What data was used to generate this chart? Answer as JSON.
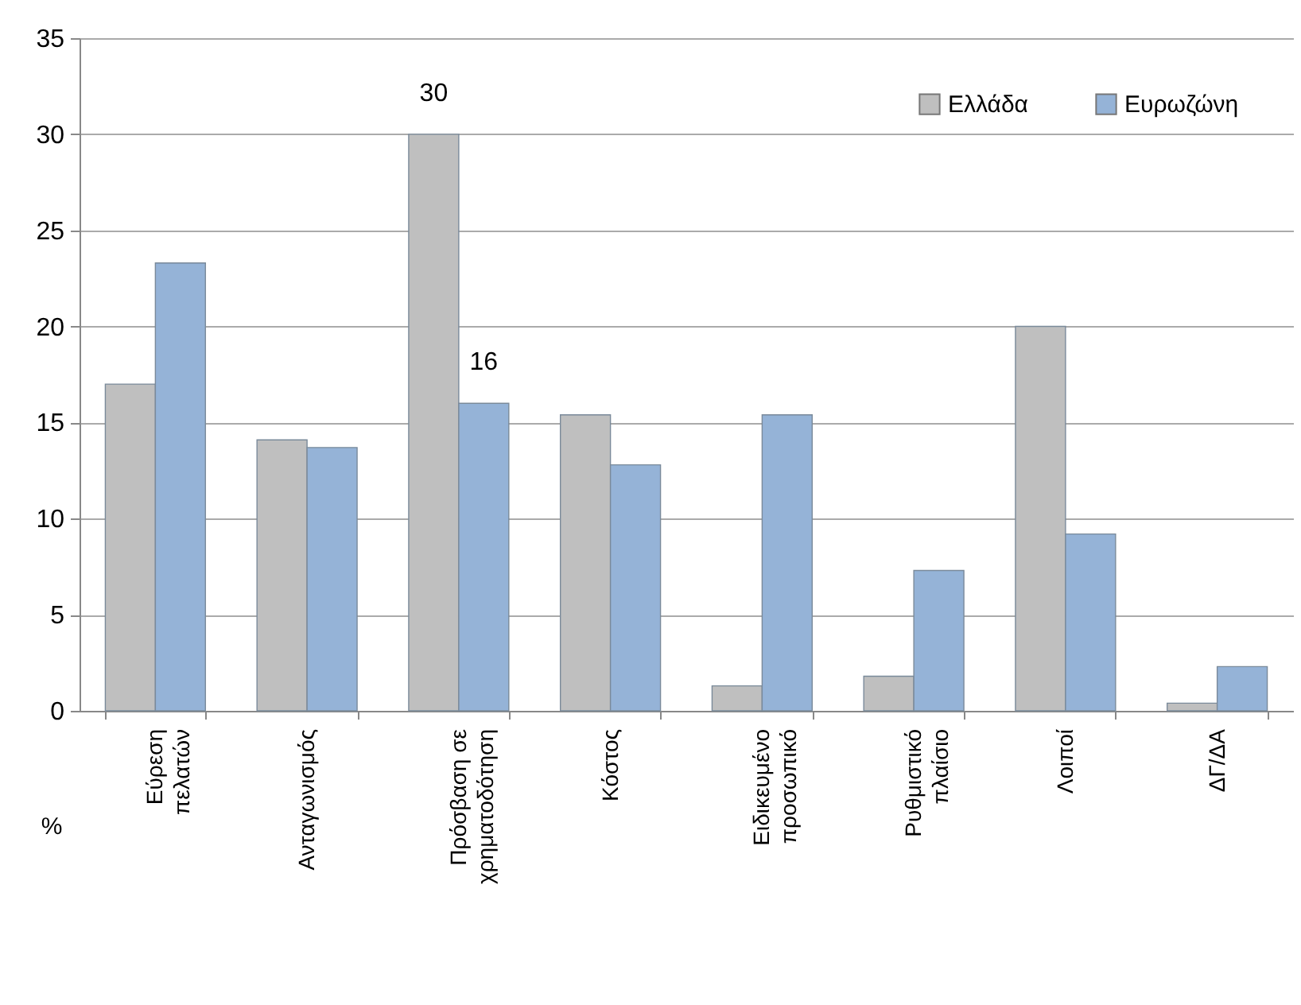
{
  "chart_data": {
    "type": "bar",
    "ylabel": "%",
    "categories": [
      "Εύρεση πελατών",
      "Ανταγωνισμός",
      "Πρόσβαση σε χρηματοδότηση",
      "Κόστος",
      "Ειδικευμένο προσωπικό",
      "Ρυθμιστικό πλαίσιο",
      "Λοιποί",
      "ΔΓ/ΔΑ"
    ],
    "series": [
      {
        "name": "Ελλάδα",
        "color": "#bfbfbf",
        "values": [
          17,
          14.1,
          30,
          15.4,
          1.3,
          1.8,
          20,
          0.4
        ],
        "value_labels": [
          null,
          null,
          "30",
          null,
          null,
          null,
          null,
          null
        ]
      },
      {
        "name": "Ευρωζώνη",
        "color": "#95b3d7",
        "values": [
          23.3,
          13.7,
          16,
          12.8,
          15.4,
          7.3,
          9.2,
          2.3
        ],
        "value_labels": [
          null,
          null,
          "16",
          null,
          null,
          null,
          null,
          null
        ]
      }
    ],
    "ylim": [
      0,
      35
    ],
    "yticks": [
      0,
      5,
      10,
      15,
      20,
      25,
      30,
      35
    ],
    "grid": "y",
    "legend": "top right"
  }
}
